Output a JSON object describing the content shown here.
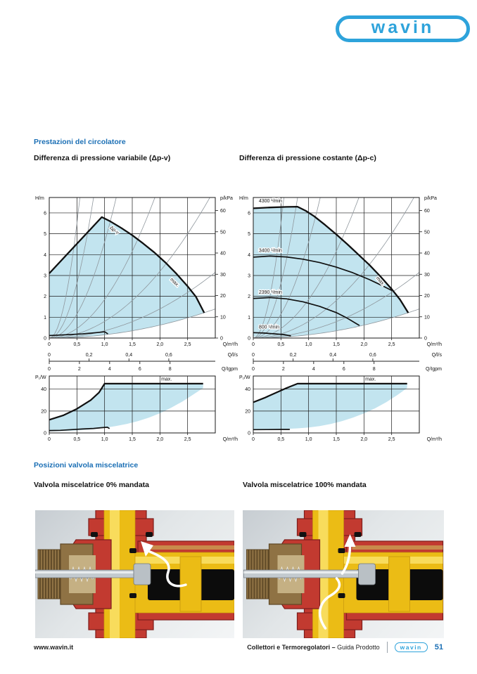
{
  "brand": {
    "logo_text": "wavin",
    "logo_color": "#2EA3DB"
  },
  "sections": {
    "performance": {
      "heading": "Prestazioni del circolatore",
      "charts": {
        "variable": {
          "title": "Differenza di pressione variabile (Δp-v)"
        },
        "constant": {
          "title": "Differenza di pressione costante (Δp-c)"
        }
      }
    },
    "valve": {
      "heading": "Posizioni valvola miscelatrice",
      "images": {
        "closed": {
          "title": "Valvola miscelatrice 0% mandata",
          "variant": "0"
        },
        "open": {
          "title": "Valvola miscelatrice 100% mandata",
          "variant": "100"
        }
      }
    }
  },
  "footer": {
    "website": "www.wavin.it",
    "doc_title_bold": "Collettori e Termoregolatori –",
    "doc_title_light": " Guida Prodotto",
    "logo_text": "wavin",
    "page_number": "51"
  },
  "colors": {
    "heading_blue": "#1B6FB5",
    "chart_fill": "#BFE3EE",
    "grid": "#1a1a1a",
    "system_curve": "#8F979D",
    "curve": "#101010"
  },
  "valve_colors": {
    "red": "#C23A30",
    "red_dark": "#7E1E1C",
    "yellow": "#EBBC15",
    "yellow_light": "#F8DC5C",
    "yellow_dark": "#C79710",
    "brass": "#8F7244",
    "brass_dark": "#5E4826",
    "brass_light": "#C5B083",
    "steel": "#C3CACF",
    "steel_dark": "#767D83",
    "steel_light": "#E8ECEE",
    "cavity": "#0C0C0C",
    "copper": "#C98A4B",
    "arrow": "#FFFFFF"
  },
  "chart_data": [
    {
      "id": "pump-variable",
      "type": "area",
      "title": "Differenza di pressione variabile (Δp-v)",
      "x_axis": {
        "label": "Q/m³/h",
        "min": 0,
        "max": 3,
        "tick_values": [
          0,
          0.5,
          1.0,
          1.5,
          2.0,
          2.5
        ],
        "tick_labels": [
          "0",
          "0,5",
          "1,0",
          "1,5",
          "2,0",
          "2,5"
        ]
      },
      "y_axis": {
        "label": "H/m",
        "min": 0,
        "max": 6.74,
        "ticks": [
          0,
          1,
          2,
          3,
          4,
          5,
          6
        ]
      },
      "y2_axis": {
        "label": "p/kPa",
        "ticks": [
          0,
          10,
          20,
          30,
          40,
          50,
          60
        ],
        "kpa_per_m": 9.81
      },
      "secondary_scales": [
        {
          "label": "Q/l/s",
          "ticks": [
            {
              "x": 0,
              "t": "0"
            },
            {
              "x": 0.72,
              "t": "0,2"
            },
            {
              "x": 1.44,
              "t": "0,4"
            },
            {
              "x": 2.16,
              "t": "0,6"
            }
          ]
        },
        {
          "label": "Q/Igpm",
          "ticks": [
            {
              "x": 0,
              "t": "0"
            },
            {
              "x": 0.545,
              "t": "2"
            },
            {
              "x": 1.091,
              "t": "4"
            },
            {
              "x": 1.637,
              "t": "6"
            },
            {
              "x": 2.182,
              "t": "8"
            }
          ]
        }
      ],
      "system_parabolas": [
        22,
        10.5,
        4.6,
        1.85,
        0.8,
        0.35,
        0.155
      ],
      "region": [
        [
          0,
          0.08
        ],
        [
          0,
          3.1
        ],
        [
          0.95,
          5.8
        ],
        [
          1.1,
          5.6
        ],
        [
          1.3,
          5.28
        ],
        [
          1.5,
          4.93
        ],
        [
          1.7,
          4.53
        ],
        [
          1.9,
          4.1
        ],
        [
          2.1,
          3.62
        ],
        [
          2.3,
          3.08
        ],
        [
          2.5,
          2.48
        ],
        [
          2.65,
          1.98
        ],
        [
          2.8,
          1.21
        ],
        [
          2.6,
          1.05
        ],
        [
          2.4,
          0.89
        ],
        [
          2.2,
          0.75
        ],
        [
          2.0,
          0.62
        ],
        [
          1.8,
          0.5
        ],
        [
          1.6,
          0.4
        ],
        [
          1.4,
          0.3
        ],
        [
          1.2,
          0.22
        ],
        [
          1.0,
          0.16
        ],
        [
          0.8,
          0.1
        ],
        [
          0.6,
          0.06
        ],
        [
          0.4,
          0.03
        ],
        [
          0.2,
          0.01
        ]
      ],
      "outline": [
        [
          0,
          3.1
        ],
        [
          0.95,
          5.8
        ],
        [
          1.1,
          5.6
        ],
        [
          1.3,
          5.28
        ],
        [
          1.5,
          4.93
        ],
        [
          1.7,
          4.53
        ],
        [
          1.9,
          4.1
        ],
        [
          2.1,
          3.62
        ],
        [
          2.3,
          3.08
        ],
        [
          2.5,
          2.48
        ],
        [
          2.65,
          1.98
        ],
        [
          2.8,
          1.21
        ]
      ],
      "extra_curves": [
        {
          "name": "min-speed",
          "width": 1.6,
          "points": [
            [
              0,
              0.12
            ],
            [
              0.3,
              0.16
            ],
            [
              0.6,
              0.2
            ],
            [
              0.85,
              0.26
            ],
            [
              1.0,
              0.3
            ],
            [
              1.06,
              0.2
            ]
          ]
        }
      ],
      "labels": [
        {
          "text": "Δp-v",
          "x": 1.16,
          "y": 5.12,
          "rotate": 38,
          "halo": true
        },
        {
          "text": "max.",
          "x": 2.25,
          "y": 2.62,
          "rotate": 44,
          "halo": true
        }
      ]
    },
    {
      "id": "pump-constant",
      "type": "area",
      "title": "Differenza di pressione costante (Δp-c)",
      "x_axis": {
        "label": "Q/m³/h",
        "min": 0,
        "max": 3,
        "tick_values": [
          0,
          0.5,
          1.0,
          1.5,
          2.0,
          2.5
        ],
        "tick_labels": [
          "0",
          "0,5",
          "1,0",
          "1,5",
          "2,0",
          "2,5"
        ]
      },
      "y_axis": {
        "label": "H/m",
        "min": 0,
        "max": 6.74,
        "ticks": [
          0,
          1,
          2,
          3,
          4,
          5,
          6
        ]
      },
      "y2_axis": {
        "label": "p/kPa",
        "ticks": [
          0,
          10,
          20,
          30,
          40,
          50,
          60
        ],
        "kpa_per_m": 9.81
      },
      "secondary_scales": [
        {
          "label": "Q/l/s",
          "ticks": [
            {
              "x": 0,
              "t": "0"
            },
            {
              "x": 0.72,
              "t": "0,2"
            },
            {
              "x": 1.44,
              "t": "0,4"
            },
            {
              "x": 2.16,
              "t": "0,6"
            }
          ]
        },
        {
          "label": "Q/Igpm",
          "ticks": [
            {
              "x": 0,
              "t": "0"
            },
            {
              "x": 0.545,
              "t": "2"
            },
            {
              "x": 1.091,
              "t": "4"
            },
            {
              "x": 1.637,
              "t": "6"
            },
            {
              "x": 2.182,
              "t": "8"
            }
          ]
        }
      ],
      "system_parabolas": [
        22,
        10.5,
        4.6,
        1.85,
        0.8,
        0.35,
        0.155
      ],
      "region": [
        [
          0,
          0.08
        ],
        [
          0,
          6.22
        ],
        [
          0.3,
          6.26
        ],
        [
          0.6,
          6.29
        ],
        [
          0.8,
          6.3
        ],
        [
          0.95,
          6.1
        ],
        [
          1.1,
          5.84
        ],
        [
          1.3,
          5.42
        ],
        [
          1.5,
          4.97
        ],
        [
          1.7,
          4.5
        ],
        [
          1.9,
          4.0
        ],
        [
          2.1,
          3.5
        ],
        [
          2.3,
          2.95
        ],
        [
          2.5,
          2.35
        ],
        [
          2.65,
          1.85
        ],
        [
          2.8,
          1.21
        ],
        [
          2.6,
          1.05
        ],
        [
          2.4,
          0.89
        ],
        [
          2.2,
          0.75
        ],
        [
          2.0,
          0.62
        ],
        [
          1.8,
          0.5
        ],
        [
          1.6,
          0.4
        ],
        [
          1.4,
          0.3
        ],
        [
          1.2,
          0.22
        ],
        [
          1.0,
          0.16
        ],
        [
          0.8,
          0.1
        ],
        [
          0.6,
          0.06
        ],
        [
          0.4,
          0.03
        ],
        [
          0.2,
          0.01
        ]
      ],
      "outline": [
        [
          0,
          6.22
        ],
        [
          0.3,
          6.26
        ],
        [
          0.6,
          6.29
        ],
        [
          0.8,
          6.3
        ],
        [
          0.95,
          6.1
        ],
        [
          1.1,
          5.84
        ],
        [
          1.3,
          5.42
        ],
        [
          1.5,
          4.97
        ],
        [
          1.7,
          4.5
        ],
        [
          1.9,
          4.0
        ],
        [
          2.1,
          3.5
        ],
        [
          2.3,
          2.95
        ],
        [
          2.5,
          2.35
        ],
        [
          2.65,
          1.85
        ],
        [
          2.8,
          1.21
        ]
      ],
      "extra_curves": [
        {
          "name": "3400-rpm",
          "width": 1.7,
          "points": [
            [
              0,
              3.88
            ],
            [
              0.3,
              3.93
            ],
            [
              0.6,
              3.89
            ],
            [
              0.9,
              3.78
            ],
            [
              1.2,
              3.62
            ],
            [
              1.5,
              3.4
            ],
            [
              1.8,
              3.13
            ],
            [
              2.1,
              2.8
            ],
            [
              2.3,
              2.55
            ],
            [
              2.5,
              2.28
            ]
          ]
        },
        {
          "name": "2390-rpm",
          "width": 1.7,
          "points": [
            [
              0,
              1.9
            ],
            [
              0.3,
              1.94
            ],
            [
              0.6,
              1.88
            ],
            [
              0.9,
              1.74
            ],
            [
              1.2,
              1.52
            ],
            [
              1.5,
              1.22
            ],
            [
              1.7,
              0.95
            ],
            [
              1.92,
              0.6
            ]
          ]
        },
        {
          "name": "800-rpm",
          "width": 1.7,
          "points": [
            [
              0,
              0.26
            ],
            [
              0.2,
              0.24
            ],
            [
              0.4,
              0.2
            ],
            [
              0.55,
              0.17
            ],
            [
              0.68,
              0.1
            ]
          ]
        }
      ],
      "labels": [
        {
          "text": "4300 ¹/min",
          "x": 0.1,
          "y": 6.5,
          "rotate": 0,
          "halo": true,
          "anchor": "start"
        },
        {
          "text": "3400 ¹/min",
          "x": 0.1,
          "y": 4.12,
          "rotate": 0,
          "halo": true,
          "anchor": "start"
        },
        {
          "text": "2390 ¹/min",
          "x": 0.1,
          "y": 2.12,
          "rotate": 0,
          "halo": true,
          "anchor": "start"
        },
        {
          "text": "800 ¹/min",
          "x": 0.1,
          "y": 0.45,
          "rotate": 0,
          "halo": true,
          "anchor": "start"
        },
        {
          "text": "max.",
          "x": 2.28,
          "y": 2.68,
          "rotate": 48,
          "halo": true
        }
      ]
    },
    {
      "id": "power-variable",
      "type": "area",
      "title": "Potenza assorbita (Δp-v)",
      "x_axis": {
        "label": "Q/m³/h",
        "min": 0,
        "max": 3,
        "tick_values": [
          0,
          0.5,
          1.0,
          1.5,
          2.0,
          2.5
        ],
        "tick_labels": [
          "0",
          "0,5",
          "1,0",
          "1,5",
          "2,0",
          "2,5"
        ]
      },
      "y_axis": {
        "label": "P₁/W",
        "min": 0,
        "max": 52,
        "ticks": [
          0,
          20,
          40
        ]
      },
      "region": [
        [
          0,
          1.5
        ],
        [
          0,
          12
        ],
        [
          0.25,
          16
        ],
        [
          0.5,
          22
        ],
        [
          0.75,
          30
        ],
        [
          0.9,
          37
        ],
        [
          1.0,
          45
        ],
        [
          2.78,
          45
        ],
        [
          2.78,
          41
        ],
        [
          2.6,
          35
        ],
        [
          2.4,
          28.5
        ],
        [
          2.2,
          23
        ],
        [
          2.0,
          18
        ],
        [
          1.8,
          14
        ],
        [
          1.6,
          10.8
        ],
        [
          1.4,
          8.2
        ],
        [
          1.2,
          6.2
        ],
        [
          1.0,
          4.6
        ],
        [
          0.8,
          3.4
        ],
        [
          0.6,
          2.6
        ],
        [
          0.4,
          2.0
        ],
        [
          0.2,
          1.6
        ]
      ],
      "curves": [
        {
          "name": "p-max",
          "width": 2.2,
          "points": [
            [
              0,
              12
            ],
            [
              0.25,
              16
            ],
            [
              0.5,
              22
            ],
            [
              0.75,
              30
            ],
            [
              0.9,
              37
            ],
            [
              1.0,
              45
            ],
            [
              2.78,
              45
            ]
          ]
        },
        {
          "name": "p-min",
          "width": 1.7,
          "points": [
            [
              0,
              2.2
            ],
            [
              0.2,
              2.4
            ],
            [
              0.4,
              3.0
            ],
            [
              0.6,
              3.6
            ],
            [
              0.8,
              4.1
            ],
            [
              0.95,
              4.8
            ],
            [
              1.05,
              5.2
            ],
            [
              1.09,
              4.0
            ]
          ]
        }
      ],
      "labels": [
        {
          "text": "max.",
          "x": 2.12,
          "y": 47.8,
          "rotate": 0
        }
      ]
    },
    {
      "id": "power-constant",
      "type": "area",
      "title": "Potenza assorbita (Δp-c)",
      "x_axis": {
        "label": "Q/m³/h",
        "min": 0,
        "max": 3,
        "tick_values": [
          0,
          0.5,
          1.0,
          1.5,
          2.0,
          2.5
        ],
        "tick_labels": [
          "0",
          "0,5",
          "1,0",
          "1,5",
          "2,0",
          "2,5"
        ]
      },
      "y_axis": {
        "label": "P₁/W",
        "min": 0,
        "max": 52,
        "ticks": [
          0,
          20,
          40
        ]
      },
      "region": [
        [
          0,
          3.2
        ],
        [
          0,
          28
        ],
        [
          0.2,
          32
        ],
        [
          0.4,
          36.5
        ],
        [
          0.6,
          41
        ],
        [
          0.8,
          45
        ],
        [
          2.78,
          45
        ],
        [
          2.78,
          41
        ],
        [
          2.6,
          34.5
        ],
        [
          2.4,
          28
        ],
        [
          2.2,
          22.5
        ],
        [
          2.0,
          17.8
        ],
        [
          1.8,
          14
        ],
        [
          1.6,
          10.8
        ],
        [
          1.4,
          8.2
        ],
        [
          1.2,
          6.3
        ],
        [
          1.0,
          5.0
        ],
        [
          0.8,
          4.2
        ],
        [
          0.6,
          3.7
        ],
        [
          0.4,
          3.4
        ],
        [
          0.2,
          3.2
        ]
      ],
      "curves": [
        {
          "name": "p-max",
          "width": 2.2,
          "points": [
            [
              0,
              28
            ],
            [
              0.2,
              32
            ],
            [
              0.4,
              36.5
            ],
            [
              0.6,
              41
            ],
            [
              0.8,
              45
            ],
            [
              2.78,
              45
            ]
          ]
        },
        {
          "name": "p-min",
          "width": 1.7,
          "points": [
            [
              0,
              3
            ],
            [
              0.25,
              3.1
            ],
            [
              0.5,
              3.2
            ],
            [
              0.66,
              3.2
            ]
          ]
        }
      ],
      "labels": [
        {
          "text": "max.",
          "x": 2.12,
          "y": 47.8,
          "rotate": 0
        }
      ]
    }
  ]
}
